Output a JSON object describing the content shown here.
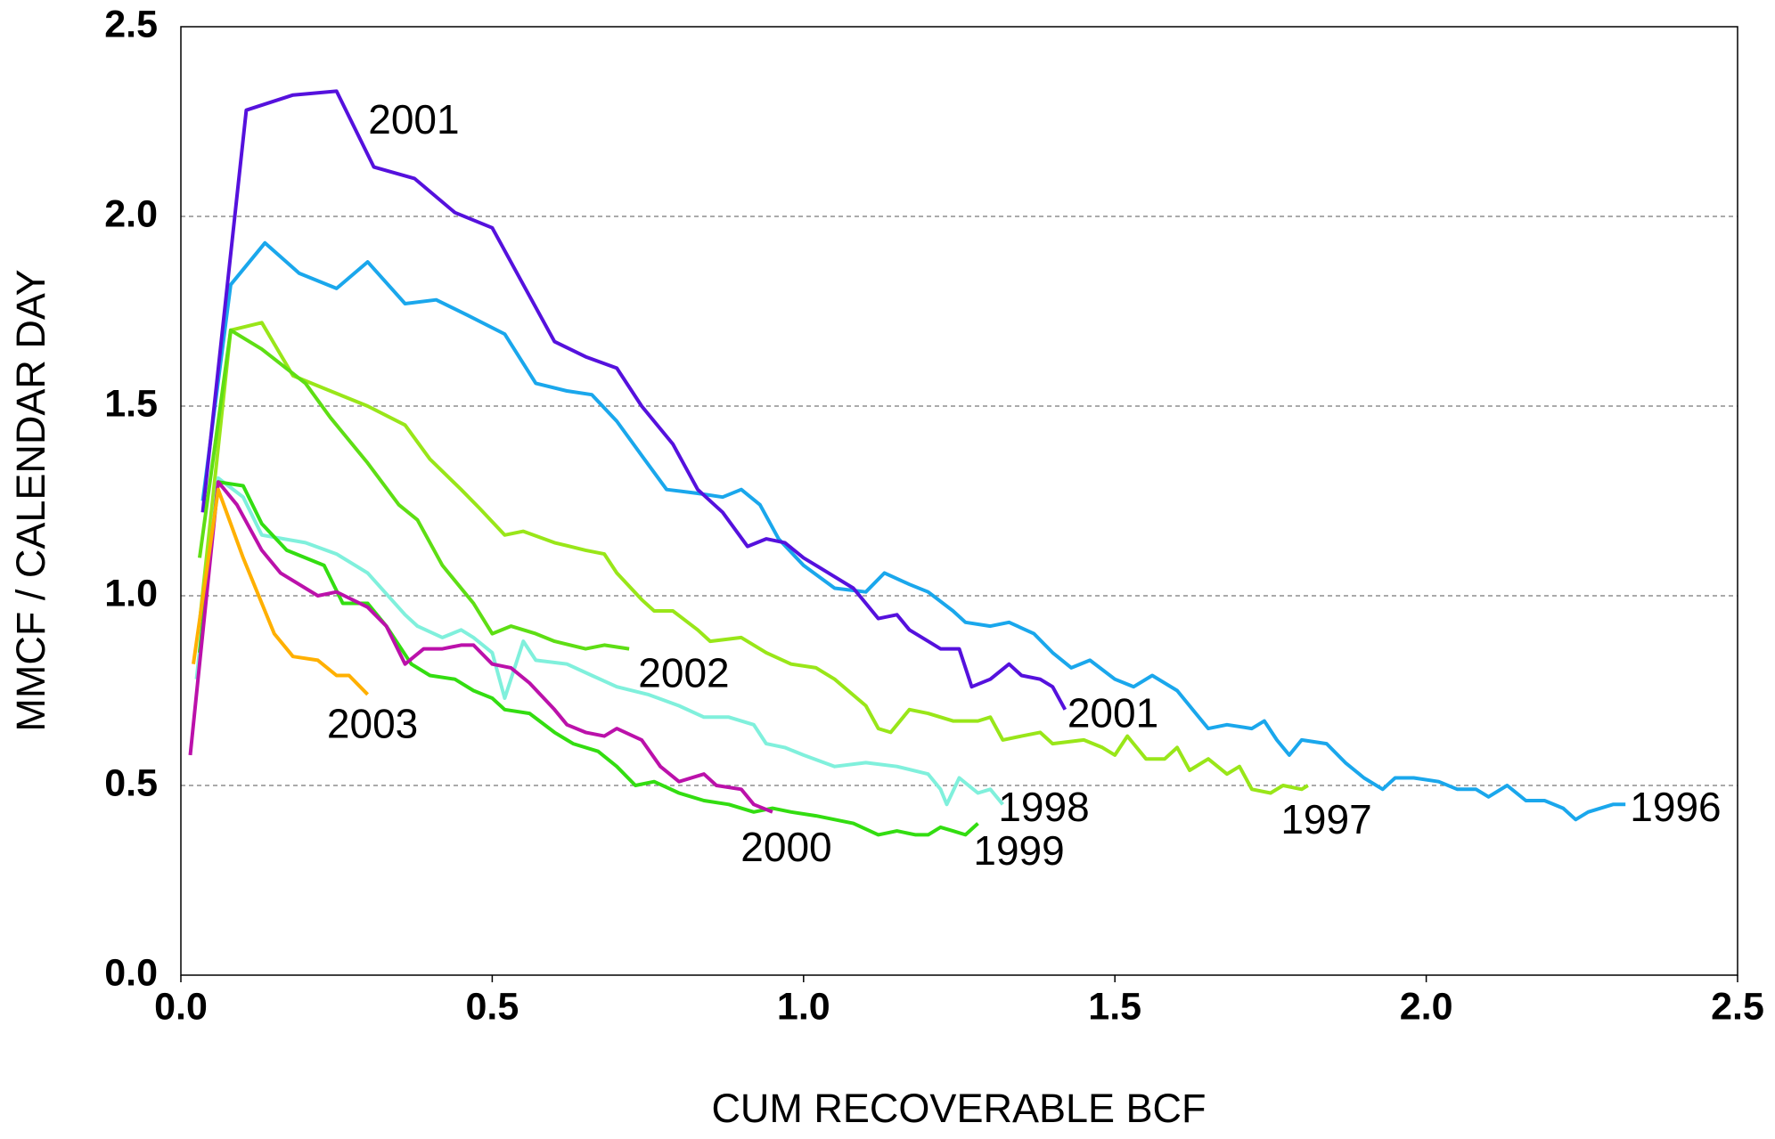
{
  "chart_data": {
    "type": "line",
    "xlabel": "CUM RECOVERABLE BCF",
    "ylabel": "MMCF / CALENDAR DAY",
    "xlim": [
      0,
      2.5
    ],
    "ylim": [
      0,
      2.5
    ],
    "xticks": [
      {
        "value": 0,
        "label": "0.0"
      },
      0.5,
      {
        "value": 1,
        "label": "1.0"
      },
      1.5,
      {
        "value": 2,
        "label": "2.0"
      },
      2.5
    ],
    "yticks": [
      {
        "value": 0,
        "label": "0.0"
      },
      0.5,
      {
        "value": 1,
        "label": "1.0"
      },
      1.5,
      {
        "value": 2,
        "label": "2.0"
      },
      2.5
    ],
    "grid": true,
    "annotations": [
      "2001"
    ],
    "series": [
      {
        "name": "1996",
        "color": "#1aa7ec",
        "x": [
          0.035,
          0.08,
          0.135,
          0.19,
          0.25,
          0.3,
          0.36,
          0.41,
          0.46,
          0.52,
          0.57,
          0.62,
          0.66,
          0.7,
          0.74,
          0.78,
          0.83,
          0.87,
          0.9,
          0.93,
          0.96,
          1.0,
          1.05,
          1.1,
          1.13,
          1.17,
          1.2,
          1.24,
          1.26,
          1.3,
          1.33,
          1.37,
          1.4,
          1.43,
          1.46,
          1.5,
          1.53,
          1.56,
          1.6,
          1.63,
          1.65,
          1.68,
          1.72,
          1.74,
          1.76,
          1.78,
          1.8,
          1.84,
          1.87,
          1.9,
          1.93,
          1.95,
          1.98,
          2.02,
          2.05,
          2.08,
          2.1,
          2.13,
          2.16,
          2.19,
          2.22,
          2.24,
          2.26,
          2.3,
          2.32
        ],
        "values": [
          1.25,
          1.82,
          1.93,
          1.85,
          1.81,
          1.88,
          1.77,
          1.78,
          1.74,
          1.69,
          1.56,
          1.54,
          1.53,
          1.46,
          1.37,
          1.28,
          1.27,
          1.26,
          1.28,
          1.24,
          1.15,
          1.08,
          1.02,
          1.01,
          1.06,
          1.03,
          1.01,
          0.96,
          0.93,
          0.92,
          0.93,
          0.9,
          0.85,
          0.81,
          0.83,
          0.78,
          0.76,
          0.79,
          0.75,
          0.69,
          0.65,
          0.66,
          0.65,
          0.67,
          0.62,
          0.58,
          0.62,
          0.61,
          0.56,
          0.52,
          0.49,
          0.52,
          0.52,
          0.51,
          0.49,
          0.49,
          0.47,
          0.5,
          0.46,
          0.46,
          0.44,
          0.41,
          0.43,
          0.45,
          0.45
        ]
      },
      {
        "name": "1997",
        "color": "#99e619",
        "x": [
          0.03,
          0.08,
          0.13,
          0.18,
          0.24,
          0.3,
          0.36,
          0.4,
          0.45,
          0.48,
          0.52,
          0.55,
          0.6,
          0.65,
          0.68,
          0.7,
          0.74,
          0.76,
          0.79,
          0.83,
          0.85,
          0.9,
          0.94,
          0.98,
          1.02,
          1.05,
          1.1,
          1.12,
          1.14,
          1.17,
          1.2,
          1.24,
          1.28,
          1.3,
          1.32,
          1.35,
          1.38,
          1.4,
          1.45,
          1.48,
          1.5,
          1.52,
          1.55,
          1.58,
          1.6,
          1.62,
          1.65,
          1.68,
          1.7,
          1.72,
          1.75,
          1.77,
          1.8,
          1.81
        ],
        "values": [
          0.93,
          1.7,
          1.72,
          1.58,
          1.54,
          1.5,
          1.45,
          1.36,
          1.28,
          1.23,
          1.16,
          1.17,
          1.14,
          1.12,
          1.11,
          1.06,
          0.99,
          0.96,
          0.96,
          0.91,
          0.88,
          0.89,
          0.85,
          0.82,
          0.81,
          0.78,
          0.71,
          0.65,
          0.64,
          0.7,
          0.69,
          0.67,
          0.67,
          0.68,
          0.62,
          0.63,
          0.64,
          0.61,
          0.62,
          0.6,
          0.58,
          0.63,
          0.57,
          0.57,
          0.6,
          0.54,
          0.57,
          0.53,
          0.55,
          0.49,
          0.48,
          0.5,
          0.49,
          0.5
        ]
      },
      {
        "name": "1998",
        "color": "#80f0dc",
        "x": [
          0.025,
          0.06,
          0.1,
          0.13,
          0.2,
          0.25,
          0.3,
          0.36,
          0.38,
          0.42,
          0.45,
          0.47,
          0.5,
          0.52,
          0.55,
          0.57,
          0.62,
          0.66,
          0.7,
          0.75,
          0.8,
          0.84,
          0.88,
          0.92,
          0.94,
          0.97,
          1.0,
          1.05,
          1.1,
          1.15,
          1.2,
          1.22,
          1.23,
          1.25,
          1.28,
          1.3,
          1.32
        ],
        "values": [
          0.78,
          1.31,
          1.26,
          1.16,
          1.14,
          1.11,
          1.06,
          0.95,
          0.92,
          0.89,
          0.91,
          0.89,
          0.85,
          0.73,
          0.88,
          0.83,
          0.82,
          0.79,
          0.76,
          0.74,
          0.71,
          0.68,
          0.68,
          0.66,
          0.61,
          0.6,
          0.58,
          0.55,
          0.56,
          0.55,
          0.53,
          0.49,
          0.45,
          0.52,
          0.48,
          0.49,
          0.45
        ]
      },
      {
        "name": "1999",
        "color": "#33dd11",
        "x": [
          0.03,
          0.06,
          0.1,
          0.13,
          0.17,
          0.23,
          0.26,
          0.3,
          0.33,
          0.37,
          0.4,
          0.44,
          0.47,
          0.5,
          0.52,
          0.56,
          0.6,
          0.63,
          0.67,
          0.7,
          0.73,
          0.76,
          0.8,
          0.84,
          0.88,
          0.92,
          0.95,
          0.98,
          1.02,
          1.05,
          1.08,
          1.12,
          1.15,
          1.18,
          1.2,
          1.22,
          1.24,
          1.26,
          1.28
        ],
        "values": [
          0.85,
          1.3,
          1.29,
          1.19,
          1.12,
          1.08,
          0.98,
          0.98,
          0.92,
          0.82,
          0.79,
          0.78,
          0.75,
          0.73,
          0.7,
          0.69,
          0.64,
          0.61,
          0.59,
          0.55,
          0.5,
          0.51,
          0.48,
          0.46,
          0.45,
          0.43,
          0.44,
          0.43,
          0.42,
          0.41,
          0.4,
          0.37,
          0.38,
          0.37,
          0.37,
          0.39,
          0.38,
          0.37,
          0.4
        ]
      },
      {
        "name": "2000",
        "color": "#bb11aa",
        "x": [
          0.015,
          0.06,
          0.09,
          0.13,
          0.16,
          0.22,
          0.25,
          0.3,
          0.33,
          0.36,
          0.39,
          0.42,
          0.45,
          0.47,
          0.5,
          0.53,
          0.56,
          0.6,
          0.62,
          0.65,
          0.68,
          0.7,
          0.74,
          0.77,
          0.8,
          0.84,
          0.86,
          0.9,
          0.92,
          0.95
        ],
        "values": [
          0.58,
          1.3,
          1.24,
          1.12,
          1.06,
          1.0,
          1.01,
          0.97,
          0.92,
          0.82,
          0.86,
          0.86,
          0.87,
          0.87,
          0.82,
          0.81,
          0.77,
          0.7,
          0.66,
          0.64,
          0.63,
          0.65,
          0.62,
          0.55,
          0.51,
          0.53,
          0.5,
          0.49,
          0.45,
          0.43
        ]
      },
      {
        "name": "2001",
        "color": "#5511dd",
        "x": [
          0.035,
          0.105,
          0.18,
          0.25,
          0.31,
          0.375,
          0.44,
          0.5,
          0.55,
          0.6,
          0.65,
          0.7,
          0.74,
          0.79,
          0.83,
          0.87,
          0.91,
          0.94,
          0.97,
          1.0,
          1.04,
          1.08,
          1.1,
          1.12,
          1.15,
          1.17,
          1.2,
          1.22,
          1.25,
          1.27,
          1.3,
          1.33,
          1.35,
          1.38,
          1.4,
          1.42
        ],
        "values": [
          1.22,
          2.28,
          2.32,
          2.33,
          2.13,
          2.1,
          2.01,
          1.97,
          1.82,
          1.67,
          1.63,
          1.6,
          1.5,
          1.4,
          1.28,
          1.22,
          1.13,
          1.15,
          1.14,
          1.1,
          1.06,
          1.02,
          0.98,
          0.94,
          0.95,
          0.91,
          0.88,
          0.86,
          0.86,
          0.76,
          0.78,
          0.82,
          0.79,
          0.78,
          0.76,
          0.7
        ]
      },
      {
        "name": "2002",
        "color": "#5ede14",
        "x": [
          0.03,
          0.08,
          0.13,
          0.2,
          0.24,
          0.3,
          0.35,
          0.38,
          0.42,
          0.47,
          0.5,
          0.53,
          0.57,
          0.6,
          0.65,
          0.68,
          0.72
        ],
        "values": [
          1.1,
          1.7,
          1.65,
          1.56,
          1.47,
          1.35,
          1.24,
          1.2,
          1.08,
          0.98,
          0.9,
          0.92,
          0.9,
          0.88,
          0.86,
          0.87,
          0.86
        ]
      },
      {
        "name": "2003",
        "color": "#ffb000",
        "x": [
          0.02,
          0.06,
          0.1,
          0.15,
          0.18,
          0.22,
          0.25,
          0.27,
          0.3
        ],
        "values": [
          0.82,
          1.28,
          1.1,
          0.9,
          0.84,
          0.83,
          0.79,
          0.79,
          0.74
        ]
      }
    ]
  }
}
